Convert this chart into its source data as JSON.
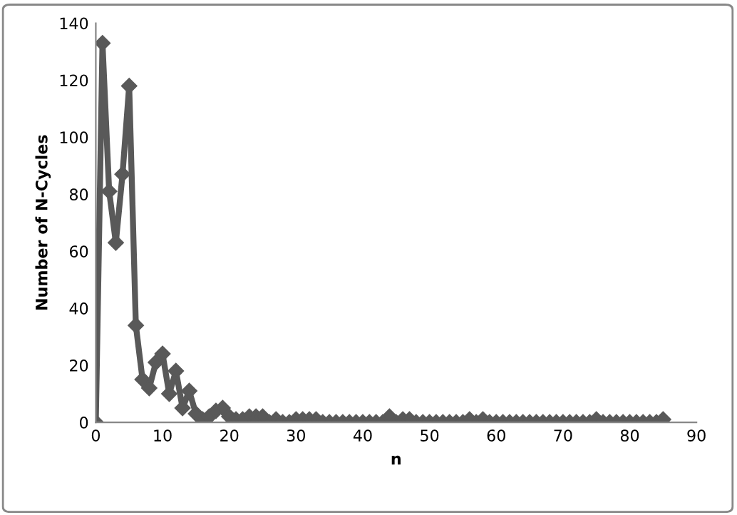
{
  "chart_data": {
    "type": "line",
    "xlabel": "n",
    "ylabel": "Number of N-Cycles",
    "x": [
      0,
      1,
      2,
      3,
      4,
      5,
      6,
      7,
      8,
      9,
      10,
      11,
      12,
      13,
      14,
      15,
      16,
      17,
      18,
      19,
      20,
      21,
      22,
      23,
      24,
      25,
      26,
      27,
      28,
      29,
      30,
      31,
      32,
      33,
      34,
      35,
      36,
      37,
      38,
      39,
      40,
      41,
      42,
      43,
      44,
      45,
      46,
      47,
      48,
      49,
      50,
      51,
      52,
      53,
      54,
      55,
      56,
      57,
      58,
      59,
      60,
      61,
      62,
      63,
      64,
      65,
      66,
      67,
      68,
      69,
      70,
      71,
      72,
      73,
      74,
      75,
      76,
      77,
      78,
      79,
      80,
      81,
      82,
      83,
      84,
      85
    ],
    "series": [
      {
        "color": "#595959",
        "values": [
          0,
          133,
          81,
          63,
          87,
          118,
          34,
          15,
          12,
          21,
          24,
          10,
          18,
          5,
          11,
          3,
          1,
          2,
          4,
          5,
          2,
          1,
          1,
          2,
          2,
          2,
          0,
          1,
          0,
          0,
          1,
          1,
          1,
          1,
          0,
          0,
          0,
          0,
          0,
          0,
          0,
          0,
          0,
          0,
          2,
          0,
          1,
          1,
          0,
          0,
          0,
          0,
          0,
          0,
          0,
          0,
          1,
          0,
          1,
          0,
          0,
          0,
          0,
          0,
          0,
          0,
          0,
          0,
          0,
          0,
          0,
          0,
          0,
          0,
          0,
          1,
          0,
          0,
          0,
          0,
          0,
          0,
          0,
          0,
          0,
          1
        ]
      }
    ],
    "xlim": [
      0,
      90
    ],
    "xticks": [
      0,
      10,
      20,
      30,
      40,
      50,
      60,
      70,
      80,
      90
    ],
    "ylim": [
      0,
      140
    ],
    "yticks": [
      0,
      20,
      40,
      60,
      80,
      100,
      120,
      140
    ],
    "marker": "diamond",
    "line_style": "solid",
    "grid": false,
    "legend": false
  }
}
